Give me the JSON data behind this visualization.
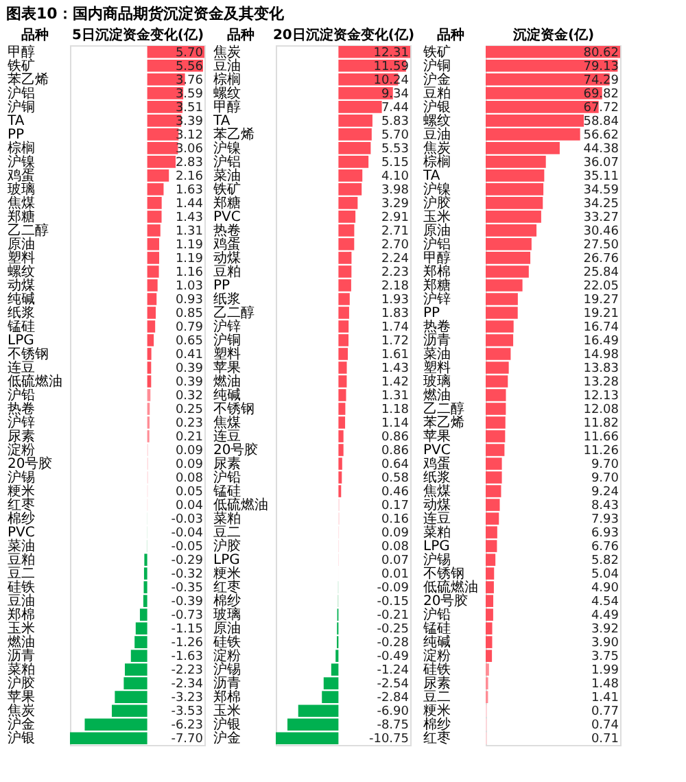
{
  "chart_data": [
    {
      "type": "bar",
      "orientation": "horizontal",
      "title": "图表10：国内商品期货沉淀资金及其变化",
      "ylabel": "品种",
      "xlabel": "5日沉淀资金变化(亿)",
      "categories": [
        "甲醇",
        "铁矿",
        "苯乙烯",
        "沪铝",
        "沪铜",
        "TA",
        "PP",
        "棕榈",
        "沪镍",
        "鸡蛋",
        "玻璃",
        "焦煤",
        "郑糖",
        "乙二醇",
        "原油",
        "塑料",
        "螺纹",
        "动煤",
        "纯碱",
        "纸浆",
        "锰硅",
        "LPG",
        "不锈钢",
        "连豆",
        "低硫燃油",
        "沪铅",
        "热卷",
        "沪锌",
        "尿素",
        "淀粉",
        "20号胶",
        "沪锡",
        "粳米",
        "红枣",
        "棉纱",
        "PVC",
        "菜油",
        "豆粕",
        "豆二",
        "硅铁",
        "豆油",
        "郑棉",
        "玉米",
        "燃油",
        "沥青",
        "菜粕",
        "沪胶",
        "苹果",
        "焦炭",
        "沪金",
        "沪银"
      ],
      "values": [
        5.7,
        5.56,
        3.76,
        3.59,
        3.51,
        3.39,
        3.12,
        3.06,
        2.83,
        2.16,
        1.63,
        1.44,
        1.43,
        1.31,
        1.19,
        1.19,
        1.16,
        1.03,
        0.93,
        0.85,
        0.79,
        0.65,
        0.41,
        0.39,
        0.39,
        0.32,
        0.25,
        0.23,
        0.21,
        0.09,
        0.09,
        0.08,
        0.05,
        0.04,
        -0.03,
        -0.04,
        -0.05,
        -0.29,
        -0.32,
        -0.35,
        -0.39,
        -0.73,
        -1.15,
        -1.26,
        -1.63,
        -2.23,
        -2.34,
        -3.23,
        -3.53,
        -6.23,
        -7.7
      ],
      "value_labels": [
        "5.70",
        "5.56",
        "3.76",
        "3.59",
        "3.51",
        "3.39",
        "3.12",
        "3.06",
        "2.83",
        "2.16",
        "1.63",
        "1.44",
        "1.43",
        "1.31",
        "1.19",
        "1.19",
        "1.16",
        "1.03",
        "0.93",
        "0.85",
        "0.79",
        "0.65",
        "0.41",
        "0.39",
        "0.39",
        "0.32",
        "0.25",
        "0.23",
        "0.21",
        "0.09",
        "0.09",
        "0.08",
        "0.05",
        "0.04",
        "-0.03",
        "-0.04",
        "-0.05",
        "-0.29",
        "-0.32",
        "-0.35",
        "-0.39",
        "-0.73",
        "-1.15",
        "-1.26",
        "-1.63",
        "-2.23",
        "-2.34",
        "-3.23",
        "-3.53",
        "-6.23",
        "-7.70"
      ],
      "colors": [
        "#ff4d5a",
        "#ff4d5a",
        "#ff4d5a",
        "#ff4d5a",
        "#ff4d5a",
        "#ff4d5a",
        "#ff4d5a",
        "#ff4d5a",
        "#ff4d5a",
        "#ff4d5a",
        "#ff4d5a",
        "#ff4d5a",
        "#ff4d5a",
        "#ff4d5a",
        "#ff4d5a",
        "#ff4d5a",
        "#ff4d5a",
        "#ff4d5a",
        "#ff4d5a",
        "#ff4d5a",
        "#ff4d5a",
        "#ff4d5a",
        "#ff4d5a",
        "#ff4d5a",
        "#ff4d5a",
        "#ff8c95",
        "#ff8c95",
        "#ff8c95",
        "#ff8c95",
        "#ffd6da",
        "#ffd6da",
        "#ffd6da",
        "#ffd6da",
        "#ffd6da",
        "#d2efdc",
        "#d2efdc",
        "#bfe8cd",
        "#00b050",
        "#00b050",
        "#00b050",
        "#00b050",
        "#00b050",
        "#00b050",
        "#00b050",
        "#00b050",
        "#00b050",
        "#00b050",
        "#00b050",
        "#00b050",
        "#00b050",
        "#00b050"
      ]
    },
    {
      "type": "bar",
      "orientation": "horizontal",
      "ylabel": "品种",
      "xlabel": "20日沉淀资金变化(亿)",
      "categories": [
        "焦炭",
        "豆油",
        "棕榈",
        "螺纹",
        "甲醇",
        "TA",
        "苯乙烯",
        "沪镍",
        "沪铝",
        "菜油",
        "铁矿",
        "郑糖",
        "PVC",
        "热卷",
        "鸡蛋",
        "动煤",
        "豆粕",
        "PP",
        "纸浆",
        "乙二醇",
        "沪锌",
        "沪铜",
        "塑料",
        "苹果",
        "燃油",
        "纯碱",
        "不锈钢",
        "焦煤",
        "连豆",
        "20号胶",
        "尿素",
        "沪铅",
        "锰硅",
        "低硫燃油",
        "菜粕",
        "豆二",
        "沪胶",
        "LPG",
        "粳米",
        "红枣",
        "棉纱",
        "玻璃",
        "原油",
        "硅铁",
        "淀粉",
        "沪锡",
        "沥青",
        "郑棉",
        "玉米",
        "沪银",
        "沪金"
      ],
      "values": [
        12.31,
        11.59,
        10.24,
        9.34,
        7.44,
        5.83,
        5.7,
        5.53,
        5.15,
        4.1,
        3.98,
        3.29,
        2.91,
        2.71,
        2.7,
        2.24,
        2.23,
        2.18,
        1.93,
        1.83,
        1.74,
        1.72,
        1.61,
        1.43,
        1.42,
        1.31,
        1.18,
        1.14,
        0.86,
        0.86,
        0.64,
        0.58,
        0.46,
        0.17,
        0.16,
        0.09,
        0.08,
        0.07,
        0.01,
        -0.09,
        -0.15,
        -0.21,
        -0.25,
        -0.28,
        -0.49,
        -1.24,
        -2.54,
        -2.84,
        -6.9,
        -8.75,
        -10.75
      ],
      "value_labels": [
        "12.31",
        "11.59",
        "10.24",
        "9.34",
        "7.44",
        "5.83",
        "5.70",
        "5.53",
        "5.15",
        "4.10",
        "3.98",
        "3.29",
        "2.91",
        "2.71",
        "2.70",
        "2.24",
        "2.23",
        "2.18",
        "1.93",
        "1.83",
        "1.74",
        "1.72",
        "1.61",
        "1.43",
        "1.42",
        "1.31",
        "1.18",
        "1.14",
        "0.86",
        "0.86",
        "0.64",
        "0.58",
        "0.46",
        "0.17",
        "0.16",
        "0.09",
        "0.08",
        "0.07",
        "0.01",
        "-0.09",
        "-0.15",
        "-0.21",
        "-0.25",
        "-0.28",
        "-0.49",
        "-1.24",
        "-2.54",
        "-2.84",
        "-6.90",
        "-8.75",
        "-10.75"
      ],
      "colors": [
        "#ff4d5a",
        "#ff4d5a",
        "#ff4d5a",
        "#ff4d5a",
        "#ff4d5a",
        "#ff4d5a",
        "#ff4d5a",
        "#ff4d5a",
        "#ff4d5a",
        "#ff4d5a",
        "#ff4d5a",
        "#ff4d5a",
        "#ff4d5a",
        "#ff4d5a",
        "#ff4d5a",
        "#ff4d5a",
        "#ff4d5a",
        "#ff4d5a",
        "#ff4d5a",
        "#ff4d5a",
        "#ff4d5a",
        "#ff4d5a",
        "#ff4d5a",
        "#ff4d5a",
        "#ff4d5a",
        "#ff4d5a",
        "#ff4d5a",
        "#ff4d5a",
        "#ff4d5a",
        "#ff4d5a",
        "#ff4d5a",
        "#ff4d5a",
        "#ff4d5a",
        "#ffd6da",
        "#ffd6da",
        "#ffd6da",
        "#ffd6da",
        "#ffd6da",
        "#ffd6da",
        "#bfe8cd",
        "#bfe8cd",
        "#00b050",
        "#00b050",
        "#00b050",
        "#00b050",
        "#00b050",
        "#00b050",
        "#00b050",
        "#00b050",
        "#00b050",
        "#00b050"
      ]
    },
    {
      "type": "bar",
      "orientation": "horizontal",
      "ylabel": "品种",
      "xlabel": "沉淀资金(亿)",
      "categories": [
        "铁矿",
        "沪铜",
        "沪金",
        "豆粕",
        "沪银",
        "螺纹",
        "豆油",
        "焦炭",
        "棕榈",
        "TA",
        "沪镍",
        "沪胶",
        "玉米",
        "原油",
        "沪铝",
        "甲醇",
        "郑棉",
        "郑糖",
        "沪锌",
        "PP",
        "热卷",
        "沥青",
        "菜油",
        "塑料",
        "玻璃",
        "燃油",
        "乙二醇",
        "苯乙烯",
        "苹果",
        "PVC",
        "鸡蛋",
        "纸浆",
        "焦煤",
        "动煤",
        "连豆",
        "菜粕",
        "LPG",
        "沪锡",
        "不锈钢",
        "低硫燃油",
        "20号胶",
        "沪铅",
        "锰硅",
        "纯碱",
        "淀粉",
        "硅铁",
        "尿素",
        "豆二",
        "粳米",
        "棉纱",
        "红枣"
      ],
      "values": [
        80.62,
        79.13,
        74.29,
        69.82,
        67.72,
        58.84,
        56.62,
        44.38,
        36.07,
        35.11,
        34.59,
        34.25,
        33.27,
        30.46,
        27.5,
        26.76,
        25.84,
        22.05,
        19.27,
        19.21,
        16.74,
        16.49,
        14.98,
        13.83,
        13.28,
        12.13,
        12.08,
        11.82,
        11.66,
        11.26,
        9.7,
        9.7,
        9.24,
        8.43,
        7.93,
        6.93,
        6.76,
        5.82,
        5.04,
        4.9,
        4.54,
        4.49,
        3.92,
        3.9,
        3.75,
        1.99,
        1.48,
        1.41,
        0.77,
        0.74,
        0.71
      ],
      "value_labels": [
        "80.62",
        "79.13",
        "74.29",
        "69.82",
        "67.72",
        "58.84",
        "56.62",
        "44.38",
        "36.07",
        "35.11",
        "34.59",
        "34.25",
        "33.27",
        "30.46",
        "27.50",
        "26.76",
        "25.84",
        "22.05",
        "19.27",
        "19.21",
        "16.74",
        "16.49",
        "14.98",
        "13.83",
        "13.28",
        "12.13",
        "12.08",
        "11.82",
        "11.66",
        "11.26",
        "9.70",
        "9.70",
        "9.24",
        "8.43",
        "7.93",
        "6.93",
        "6.76",
        "5.82",
        "5.04",
        "4.90",
        "4.54",
        "4.49",
        "3.92",
        "3.90",
        "3.75",
        "1.99",
        "1.48",
        "1.41",
        "0.77",
        "0.74",
        "0.71"
      ],
      "colors": [
        "#ff4d5a",
        "#ff4d5a",
        "#ff4d5a",
        "#ff4d5a",
        "#ff4d5a",
        "#ff4d5a",
        "#ff4d5a",
        "#ff4d5a",
        "#ff4d5a",
        "#ff4d5a",
        "#ff4d5a",
        "#ff4d5a",
        "#ff4d5a",
        "#ff4d5a",
        "#ff4d5a",
        "#ff4d5a",
        "#ff4d5a",
        "#ff4d5a",
        "#ff4d5a",
        "#ff4d5a",
        "#ff4d5a",
        "#ff4d5a",
        "#ff4d5a",
        "#ff4d5a",
        "#ff4d5a",
        "#ff4d5a",
        "#ff4d5a",
        "#ff4d5a",
        "#ff4d5a",
        "#ff4d5a",
        "#ff4d5a",
        "#ff4d5a",
        "#ff4d5a",
        "#ff4d5a",
        "#ff4d5a",
        "#ff4d5a",
        "#ff4d5a",
        "#ff4d5a",
        "#ff4d5a",
        "#ff4d5a",
        "#ff4d5a",
        "#ff4d5a",
        "#ff4d5a",
        "#ff4d5a",
        "#ff4d5a",
        "#ff8c95",
        "#ff8c95",
        "#ff8c95",
        "#ffd6da",
        "#ffd6da",
        "#ffd6da"
      ]
    }
  ]
}
